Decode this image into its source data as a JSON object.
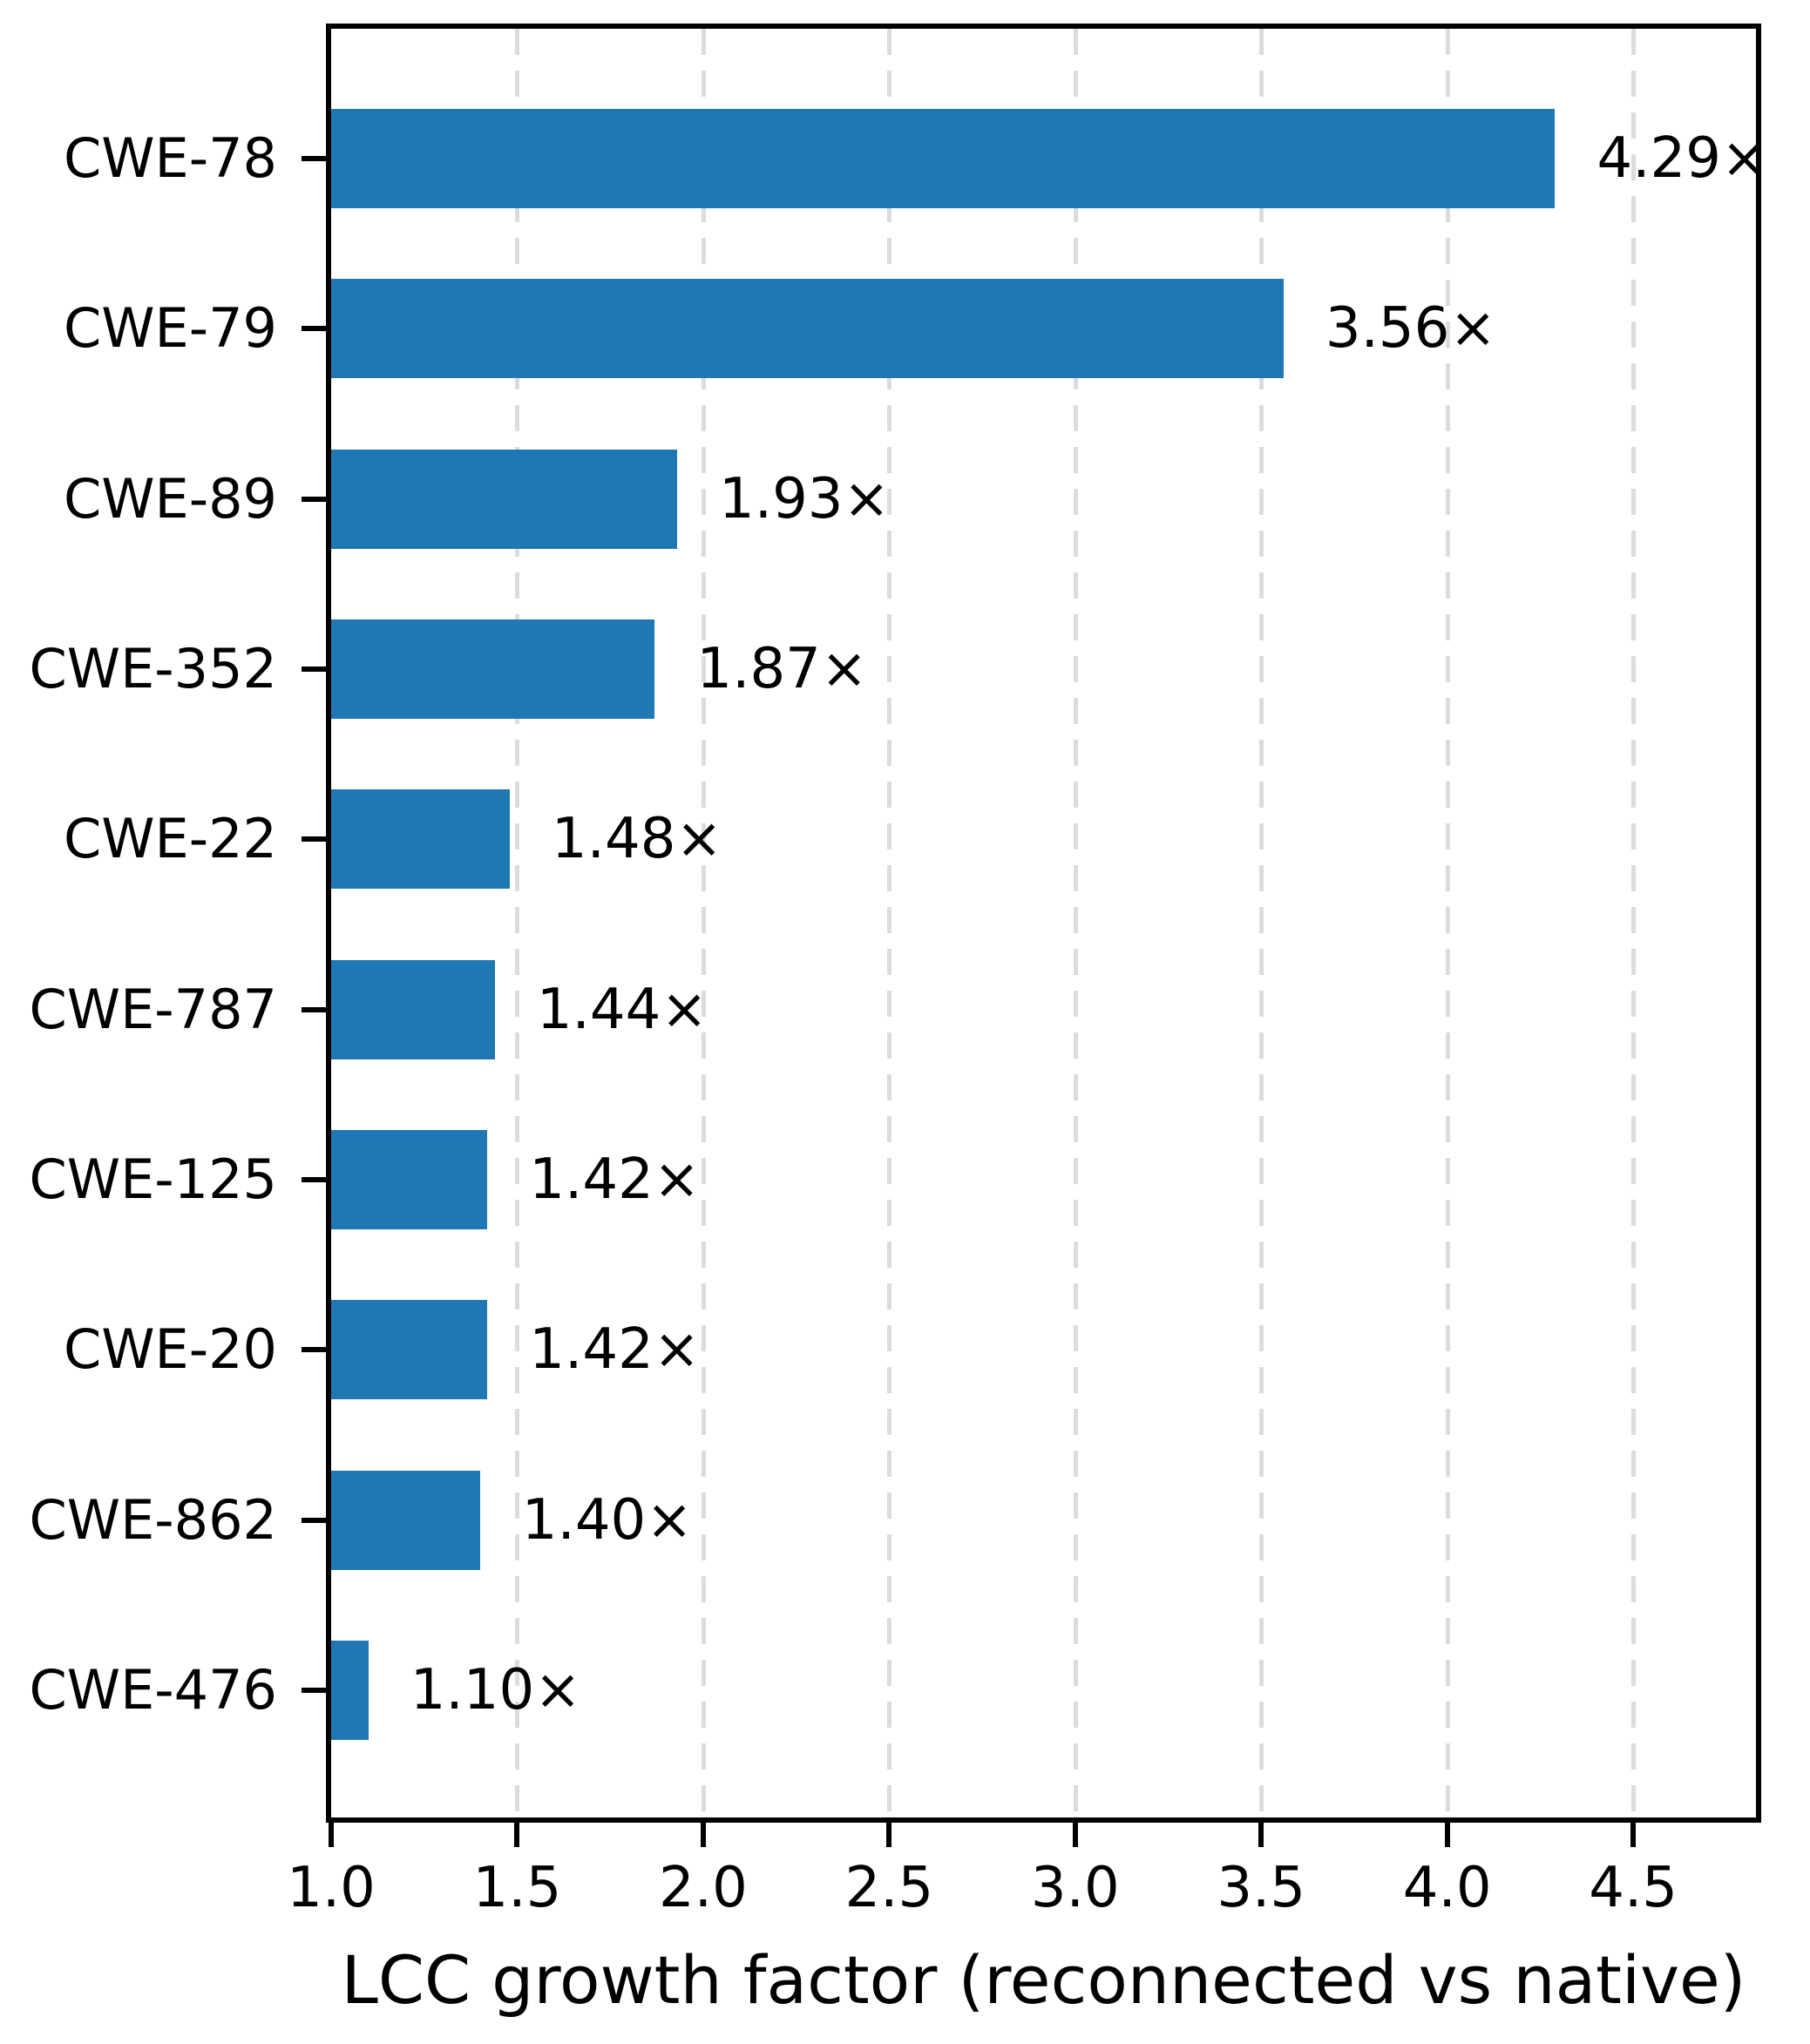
{
  "chart_data": {
    "type": "bar",
    "orientation": "horizontal",
    "title": "",
    "xlabel": "LCC growth factor (reconnected vs native)",
    "ylabel": "",
    "categories": [
      "CWE-78",
      "CWE-79",
      "CWE-89",
      "CWE-352",
      "CWE-22",
      "CWE-787",
      "CWE-125",
      "CWE-20",
      "CWE-862",
      "CWE-476"
    ],
    "values": [
      4.29,
      3.56,
      1.93,
      1.87,
      1.48,
      1.44,
      1.42,
      1.42,
      1.4,
      1.1
    ],
    "value_labels": [
      "4.29×",
      "3.56×",
      "1.93×",
      "1.87×",
      "1.48×",
      "1.44×",
      "1.42×",
      "1.42×",
      "1.40×",
      "1.10×"
    ],
    "xlim": [
      1.0,
      4.83
    ],
    "xticks": [
      1.0,
      1.5,
      2.0,
      2.5,
      3.0,
      3.5,
      4.0,
      4.5
    ],
    "xtick_labels": [
      "1.0",
      "1.5",
      "2.0",
      "2.5",
      "3.0",
      "3.5",
      "4.0",
      "4.5"
    ],
    "grid": "vertical-dashed",
    "legend": "none",
    "bar_color": "#1f77b4",
    "grid_color": "#dcdcdc",
    "axis_color": "#000000",
    "text_color": "#000000"
  }
}
